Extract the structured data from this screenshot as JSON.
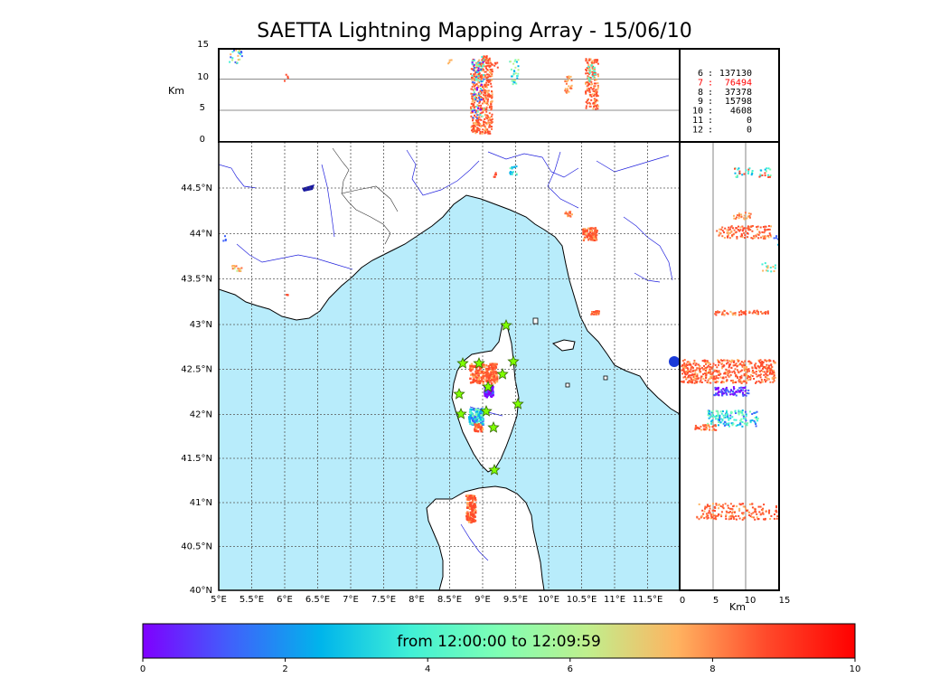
{
  "title": "SAETTA Lightning Mapping Array - 15/06/10",
  "alt_axis": {
    "unit_label": "Km",
    "ticks": [
      "15",
      "10",
      "5",
      "0"
    ]
  },
  "map": {
    "lat_ticks": [
      "44.5°N",
      "44°N",
      "43.5°N",
      "43°N",
      "42.5°N",
      "42°N",
      "41.5°N",
      "41°N",
      "40.5°N",
      "40°N"
    ],
    "lon_ticks": [
      "5°E",
      "5.5°E",
      "6°E",
      "6.5°E",
      "7°E",
      "7.5°E",
      "8°E",
      "8.5°E",
      "9°E",
      "9.5°E",
      "10°E",
      "10.5°E",
      "11°E",
      "11.5°E"
    ],
    "sea_color": "#b8ecfb",
    "coast_color": "#000000",
    "river_color": "#2222dd",
    "station_marker": "star",
    "station_color": "#7fff00"
  },
  "side_axis": {
    "ticks": [
      "0",
      "5",
      "10",
      "15"
    ],
    "unit_label": "Km"
  },
  "legend": {
    "rows": [
      {
        "stations": "6",
        "sep": ":",
        "count": "137130",
        "highlight": false
      },
      {
        "stations": "7",
        "sep": ":",
        "count": "76494",
        "highlight": true
      },
      {
        "stations": "8",
        "sep": ":",
        "count": "37378",
        "highlight": false
      },
      {
        "stations": "9",
        "sep": ":",
        "count": "15798",
        "highlight": false
      },
      {
        "stations": "10",
        "sep": ":",
        "count": "4608",
        "highlight": false
      },
      {
        "stations": "11",
        "sep": ":",
        "count": "0",
        "highlight": false
      },
      {
        "stations": "12",
        "sep": ":",
        "count": "0",
        "highlight": false
      }
    ],
    "highlight_color": "#ff0000"
  },
  "colorbar": {
    "label": "from 12:00:00 to 12:09:59",
    "ticks": [
      "0",
      "2",
      "4",
      "6",
      "8",
      "10"
    ],
    "colors": [
      "#7f00ff",
      "#3f62fb",
      "#00b5eb",
      "#40f0d6",
      "#7fffb4",
      "#c0ef8d",
      "#ffb360",
      "#ff4a2b",
      "#ff0000"
    ]
  }
}
